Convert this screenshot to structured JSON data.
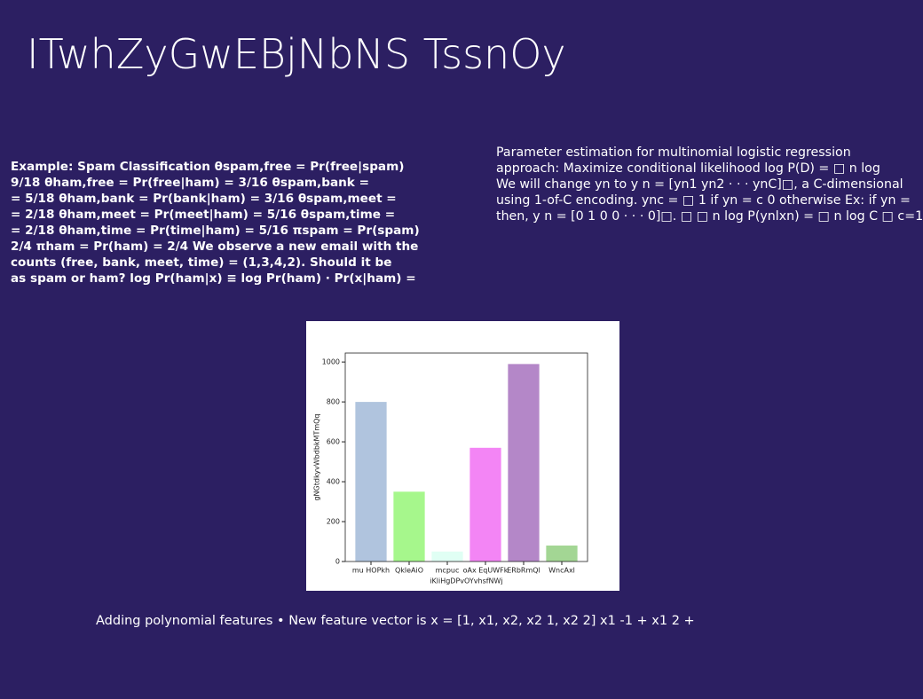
{
  "slide": {
    "title": "ITwhZyGwEBjNbNS TssnOy",
    "left_lines": [
      "Example: Spam Classification θspam,free = Pr(free|spam)",
      "9/18 θham,free = Pr(free|ham) = 3/16 θspam,bank =",
      "= 5/18 θham,bank = Pr(bank|ham) = 3/16 θspam,meet =",
      "= 2/18 θham,meet = Pr(meet|ham) = 5/16 θspam,time =",
      "= 2/18 θham,time = Pr(time|ham) = 5/16 πspam = Pr(spam)",
      "2/4 πham = Pr(ham) = 2/4 We observe a new email with the",
      "counts (free, bank, meet, time) = (1,3,4,2). Should it be",
      "as spam or ham? log Pr(ham|x) ≡ log Pr(ham) · Pr(x|ham) ="
    ],
    "right_lines": [
      "Parameter estimation for multinomial logistic regression",
      "approach: Maximize conditional likelihood log P(D) = □ n log",
      "We will change yn to y n = [yn1 yn2 · · · ynC]□, a C-dimensional",
      "using 1-of-C encoding. ync = □ 1 if yn = c 0 otherwise Ex: if yn =",
      "then, y n = [0 1 0 0 · · · 0]□. □ □ n log P(ynlxn) = □ n log C □ c=1"
    ],
    "footer": "Adding polynomial features • New feature vector is x = [1, x1, x2, x2 1, x2 2] x1 -1 + x1 2 +"
  },
  "chart_data": {
    "type": "bar",
    "categories": [
      "mu HOPkh",
      "QkleAiO",
      "mcpuc",
      "oAx EqUWFk",
      "ERbRmQl",
      "WncAxl"
    ],
    "values": [
      800,
      350,
      50,
      570,
      990,
      80
    ],
    "colors": [
      "#b0c4de",
      "#a6f78c",
      "#e0fff4",
      "#f385f5",
      "#b487c8",
      "#a3d694"
    ],
    "xlabel": "iKliHgDPvOYvhsfNWj",
    "ylabel": "gNGtdkyvWbdbkMTmQq",
    "ylim": [
      0,
      1045
    ],
    "yticks": [
      0,
      200,
      400,
      600,
      800,
      1000
    ]
  }
}
